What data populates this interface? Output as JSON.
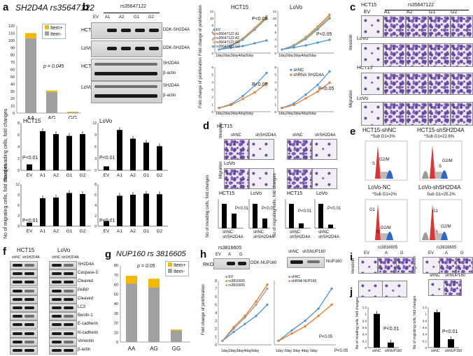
{
  "panels": {
    "a": {
      "label": "a",
      "title": "SH2D4A rs35647122",
      "legend": [
        "Item+",
        "Item-"
      ],
      "pval": "p = 0.045",
      "chart_data": {
        "type": "bar",
        "categories": [
          "AA",
          "AG",
          "GG"
        ],
        "series": [
          {
            "name": "Item-",
            "values": [
              103,
              29,
              1
            ]
          },
          {
            "name": "Item+",
            "values": [
              7,
              2,
              1
            ]
          }
        ],
        "ylim": [
          0,
          120
        ],
        "yticks": [
          "0",
          "10",
          "20",
          "30",
          "40",
          "50",
          "60",
          "70",
          "80",
          "90",
          "100",
          "110",
          "120"
        ]
      }
    },
    "b": {
      "label": "b",
      "snp": "rs35647122",
      "lanes": [
        "EV",
        "A1",
        "A2",
        "G1",
        "G2"
      ],
      "rows": [
        "HCT15",
        "LoVo",
        "HCT15",
        "LoVo"
      ],
      "blot_labels": [
        "DDK-SH2D4A",
        "DDK-SH2D4A",
        "SH2D4A",
        "β-actin",
        "SH2D4A",
        "β-actin"
      ]
    },
    "growth": {
      "ylabel": "Fold change of proliferation",
      "xlabels": [
        "1day",
        "2day",
        "3day",
        "4day",
        "5day"
      ],
      "hct15_title": "HCT15",
      "lovo_title": "LoVo",
      "pval": "P<0.05",
      "pval2": "P<0.05",
      "pval3": "P<0.05",
      "legend_over": [
        "EV",
        "rs35647122 A1",
        "rs35647122 A2",
        "rs35647122 G1",
        "rs35647122 G2"
      ],
      "legend_kd": [
        "shNC",
        "shRNA SH2D4A"
      ],
      "chart_data": [
        {
          "type": "line",
          "title": "HCT15",
          "x": [
            "1day",
            "2day",
            "3day",
            "4day",
            "5day"
          ],
          "ylim": [
            0,
            12
          ],
          "series": [
            {
              "name": "EV",
              "values": [
                1,
                1.5,
                2,
                2.8,
                3.6
              ]
            },
            {
              "name": "rs35647122 A1",
              "values": [
                1,
                2.2,
                4.2,
                7.2,
                10.5
              ]
            },
            {
              "name": "rs35647122 A2",
              "values": [
                1,
                2.1,
                4,
                7,
                10.3
              ]
            },
            {
              "name": "rs35647122 G1",
              "values": [
                1,
                2,
                3.9,
                6.9,
                10.1
              ]
            },
            {
              "name": "rs35647122 G2",
              "values": [
                1,
                2,
                3.8,
                6.7,
                9.9
              ]
            }
          ]
        },
        {
          "type": "line",
          "title": "LoVo",
          "x": [
            "1day",
            "2day",
            "3day",
            "4day",
            "5day"
          ],
          "ylim": [
            0,
            12
          ],
          "series": [
            {
              "name": "EV",
              "values": [
                1,
                1.6,
                2.2,
                3,
                3.8
              ]
            },
            {
              "name": "rs35647122 A1",
              "values": [
                1,
                2.3,
                4.5,
                7.6,
                11
              ]
            },
            {
              "name": "rs35647122 A2",
              "values": [
                1,
                2.2,
                4.3,
                7.3,
                10.6
              ]
            },
            {
              "name": "rs35647122 G1",
              "values": [
                1,
                2.1,
                4.1,
                7,
                10.2
              ]
            },
            {
              "name": "rs35647122 G2",
              "values": [
                1,
                2,
                4,
                6.8,
                9.9
              ]
            }
          ]
        },
        {
          "type": "line",
          "title": "HCT15 knockdown",
          "x": [
            "1day",
            "2day",
            "3day",
            "4day",
            "5day"
          ],
          "ylim": [
            0,
            6
          ],
          "series": [
            {
              "name": "shNC",
              "values": [
                0.5,
                1,
                2.1,
                3.5,
                5.2
              ]
            },
            {
              "name": "shRNA SH2D4A",
              "values": [
                0.5,
                0.9,
                1.7,
                2.6,
                3.8
              ]
            }
          ]
        },
        {
          "type": "line",
          "title": "LoVo knockdown",
          "x": [
            "1day",
            "2day",
            "3day",
            "4day",
            "5day"
          ],
          "ylim": [
            0,
            6
          ],
          "series": [
            {
              "name": "shNC",
              "values": [
                0.5,
                1.1,
                2.3,
                3.6,
                5.4
              ]
            },
            {
              "name": "shRNA SH2D4A",
              "values": [
                0.5,
                0.9,
                1.8,
                2.7,
                3.9
              ]
            }
          ]
        }
      ]
    },
    "c": {
      "label": "c",
      "cell": "HCT15",
      "snp": "rs35647122",
      "cols": [
        "EV",
        "A1",
        "A2",
        "G1",
        "G2"
      ],
      "rows": [
        "Invasion",
        "Migration"
      ],
      "cells": [
        "LoVo",
        "HCT15",
        "LoVo"
      ]
    },
    "bars": {
      "ylabel_inv": "No of invading cells, fold changes",
      "ylabel_mig": "No of migrating cells, fold changes",
      "pval": "P<0.01",
      "hct15": "HCT15",
      "lovo": "LoVo",
      "chart_data": [
        {
          "type": "bar",
          "title": "HCT15 invasion",
          "categories": [
            "EV",
            "A1",
            "A2",
            "G1",
            "G2"
          ],
          "values": [
            1,
            6.6,
            6.1,
            5.8,
            6.1
          ],
          "ylim": [
            0,
            8
          ]
        },
        {
          "type": "bar",
          "title": "LoVo invasion",
          "categories": [
            "EV",
            "A1",
            "A2",
            "G1",
            "G2"
          ],
          "values": [
            1,
            10.2,
            8,
            7,
            6.1
          ],
          "ylim": [
            0,
            12
          ]
        },
        {
          "type": "bar",
          "title": "HCT15 migration",
          "categories": [
            "EV",
            "A1",
            "A2",
            "G1",
            "G2"
          ],
          "values": [
            1,
            8,
            8.2,
            9.5,
            9.2
          ],
          "ylim": [
            0,
            12
          ]
        },
        {
          "type": "bar",
          "title": "LoVo migration",
          "categories": [
            "EV",
            "A1",
            "A2",
            "G1",
            "G2"
          ],
          "values": [
            1,
            5.8,
            6,
            6.2,
            6.1
          ],
          "ylim": [
            0,
            8
          ]
        }
      ]
    },
    "d": {
      "label": "d",
      "cell1": "HCT15",
      "cell2": "LoVo",
      "cols": [
        "shNC",
        "shSH2D4A"
      ],
      "rows": [
        "Invasion",
        "Migration"
      ],
      "ylabel_inv": "No of invading cells, fold changes",
      "ylabel_mig": "No of migrating cells, fold changes",
      "sub_hct": "HCT15",
      "sub_lovo": "LoVo",
      "pval": "P<0.01",
      "xcats": [
        "shNC",
        "shSH2D4A"
      ],
      "chart_data": [
        {
          "type": "bar",
          "title": "HCT15 invasion",
          "categories": [
            "shNC",
            "shSH2D4A"
          ],
          "values": [
            1,
            0.6
          ]
        },
        {
          "type": "bar",
          "title": "LoVo invasion",
          "categories": [
            "shNC",
            "shSH2D4A"
          ],
          "values": [
            1,
            0.4
          ]
        },
        {
          "type": "bar",
          "title": "HCT15 migration",
          "categories": [
            "shNC",
            "shSH2D4A"
          ],
          "values": [
            1,
            0.2
          ]
        },
        {
          "type": "bar",
          "title": "LoVo migration",
          "categories": [
            "shNC",
            "shSH2D4A"
          ],
          "values": [
            1,
            0.15
          ]
        }
      ]
    },
    "e": {
      "label": "e",
      "t1": "HCT15-shNC",
      "s1": "*Sub G1=3%",
      "t2": "HCT15-shSH2D4A",
      "s2": "*Sub G1=22.6%",
      "t3": "LoVo-NC",
      "s3": "*Sub G1=2%",
      "t4": "LoVo-shSH2D4A",
      "s4": "Sub G1=25.2%",
      "g1": "G1",
      "g2m": "G2/M",
      "s": "S"
    },
    "f": {
      "label": "f",
      "cell1": "HCT15",
      "cell2": "LoVo",
      "lanes": [
        "shNC",
        "shSH2D4A"
      ],
      "proteins": [
        "SH2D4A",
        "Caspase-3",
        "Cleaved",
        "PARP",
        "Cleaved",
        "LC3",
        "Beclin-1",
        "E-cadherin",
        "N-cadherin",
        "Vimentin",
        "β-actin"
      ]
    },
    "g": {
      "label": "g",
      "title": "NUP160 rs 3816605",
      "pval": "p = 0.05",
      "legend": [
        "Item+",
        "Item-"
      ],
      "chart_data": {
        "type": "bar",
        "categories": [
          "AA",
          "AG",
          "GG"
        ],
        "series": [
          {
            "name": "Item-",
            "values": [
              61,
              57,
              12
            ]
          },
          {
            "name": "Item+",
            "values": [
              8,
              9,
              1
            ]
          }
        ],
        "ylim": [
          0,
          80
        ],
        "yticks": [
          "0",
          "10",
          "20",
          "30",
          "40",
          "50",
          "60",
          "70",
          "80"
        ]
      }
    },
    "h": {
      "label": "h",
      "rko": "RKO",
      "snp": "rs3816605",
      "lanes": [
        "EV",
        "A",
        "G"
      ],
      "blot1": "DDK-NUP160",
      "lanes2": [
        "shNC",
        "shSNUP160"
      ],
      "blot2": "NUP160",
      "ylabel": "Fold change of proliferation",
      "xlabels": [
        "1day",
        "2day",
        "3day",
        "4day",
        "5day"
      ],
      "pval": "P<0.05",
      "pval2": "P<0.05",
      "legend1": [
        "EV",
        "rs3816605",
        "rs3816605"
      ],
      "legend2": [
        "shNC",
        "shRNA NUP160"
      ],
      "chart_data": [
        {
          "type": "line",
          "x": [
            "1day",
            "2day",
            "3day",
            "4day",
            "5day"
          ],
          "ylim": [
            0,
            8
          ],
          "series": [
            {
              "name": "EV",
              "values": [
                0.5,
                1.6,
                2.6,
                3.6,
                5
              ]
            },
            {
              "name": "rs3816605 A",
              "values": [
                0.5,
                2.2,
                3.6,
                5.4,
                7.5
              ]
            },
            {
              "name": "rs3816605 G",
              "values": [
                0.5,
                2,
                3.4,
                5,
                7
              ]
            }
          ]
        },
        {
          "type": "line",
          "x": [
            "1day",
            "2day",
            "3day",
            "4day",
            "5day"
          ],
          "ylim": [
            0,
            8
          ],
          "series": [
            {
              "name": "shNC",
              "values": [
                0.5,
                1.8,
                3,
                4.5,
                7
              ]
            },
            {
              "name": "shRNA NUP160",
              "values": [
                0.5,
                1.4,
                2.3,
                3.6,
                5
              ]
            }
          ]
        }
      ]
    },
    "i": {
      "label": "i",
      "snp": "rs3816605",
      "cols": [
        "EV",
        "A",
        "G"
      ],
      "row1": "Invasion",
      "row2": "Migration",
      "kd": [
        "shNC",
        "shNUP160"
      ]
    },
    "j": {
      "label": "j",
      "ylabel_inv": "No of invading cells, fold changes",
      "ylabel_mig": "No of migrating cells, fold changes",
      "pval": "P<0.01",
      "cats": [
        "shNC",
        "shNUP160"
      ],
      "chart_data": [
        {
          "type": "bar",
          "title": "invasion",
          "categories": [
            "shNC",
            "shNUP160"
          ],
          "values": [
            1,
            0.15
          ],
          "ylim": [
            0,
            1.2
          ],
          "yticks": [
            "0",
            "0.2",
            "0.4",
            "0.6",
            "0.8",
            "1",
            "1.2"
          ]
        },
        {
          "type": "bar",
          "title": "migration",
          "categories": [
            "shNC",
            "shNUP160"
          ],
          "values": [
            1.05,
            0.25
          ],
          "ylim": [
            0,
            1.2
          ],
          "yticks": [
            "0",
            "0.2",
            "0.4",
            "0.6",
            "0.8",
            "1",
            "1.2"
          ]
        }
      ]
    }
  },
  "colors": {
    "gold": "#f5b800",
    "gray": "#a0a0a0",
    "blue": "#4a8fd8",
    "orange": "#e8762a"
  }
}
